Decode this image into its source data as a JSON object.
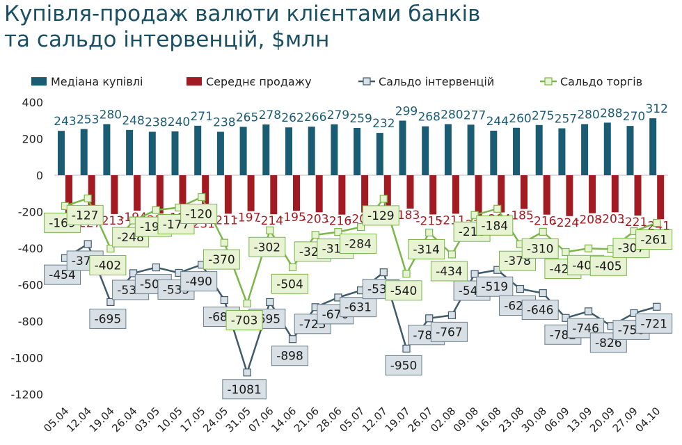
{
  "title": {
    "line1": "Купівля-продаж валюти клієнтами банків",
    "line2": "та сальдо інтервенцій, $млн"
  },
  "chart_data": {
    "type": "bar",
    "categories": [
      "05.04",
      "12.04",
      "19.04",
      "26.04",
      "03.05",
      "10.05",
      "17.05",
      "24.05",
      "31.05",
      "07.06",
      "14.06",
      "21.06",
      "28.06",
      "05.07",
      "12.07",
      "19.07",
      "26.07",
      "02.08",
      "09.08",
      "16.08",
      "23.08",
      "30.08",
      "06.09",
      "13.09",
      "20.09",
      "27.09",
      "04.10"
    ],
    "ylim": [
      -1200,
      400
    ],
    "yticks": [
      400,
      200,
      0,
      -200,
      -400,
      -600,
      -800,
      -1000,
      -1200
    ],
    "ytick_labels": [
      "400",
      "200",
      "0",
      "-200",
      "-400",
      "-600",
      "-800",
      "-1000",
      "-1200"
    ],
    "legend_position": "top",
    "grid": false,
    "series": [
      {
        "name": "Медіана купівлі",
        "type": "bar",
        "color": "#1b5c75",
        "values": [
          243,
          253,
          280,
          248,
          238,
          240,
          271,
          238,
          265,
          278,
          262,
          266,
          279,
          259,
          232,
          299,
          268,
          280,
          277,
          244,
          260,
          275,
          257,
          280,
          288,
          270,
          312
        ]
      },
      {
        "name": "Середнє продажу",
        "type": "bar",
        "color": "#a31b22",
        "values": [
          -231,
          -227,
          -213,
          -194,
          -210,
          -197,
          -231,
          -211,
          -197,
          -214,
          -195,
          -203,
          -216,
          -204,
          -214,
          -183,
          -215,
          -211,
          -234,
          -204,
          -185,
          -216,
          -224,
          -208,
          -203,
          -221,
          -241
        ]
      },
      {
        "name": "Сальдо інтервенцій",
        "type": "line",
        "color": "#3e5a6b",
        "marker_fill": "#d8e0e6",
        "values": [
          -454,
          -377,
          -695,
          -537,
          -505,
          -535,
          -490,
          -684,
          -1081,
          -695,
          -898,
          -723,
          -670,
          -631,
          -532,
          -950,
          -784,
          -767,
          -541,
          -519,
          -623,
          -646,
          -782,
          -746,
          -826,
          -756,
          -721
        ]
      },
      {
        "name": "Сальдо торгів",
        "type": "line",
        "color": "#7ab648",
        "marker_fill": "#e8f3d4",
        "values": [
          -169,
          -127,
          -402,
          -248,
          -191,
          -177,
          -120,
          -370,
          -703,
          -302,
          -504,
          -327,
          -311,
          -284,
          -129,
          -540,
          -314,
          -434,
          -218,
          -184,
          -378,
          -310,
          -421,
          -401,
          -405,
          -307,
          -261
        ]
      }
    ]
  }
}
